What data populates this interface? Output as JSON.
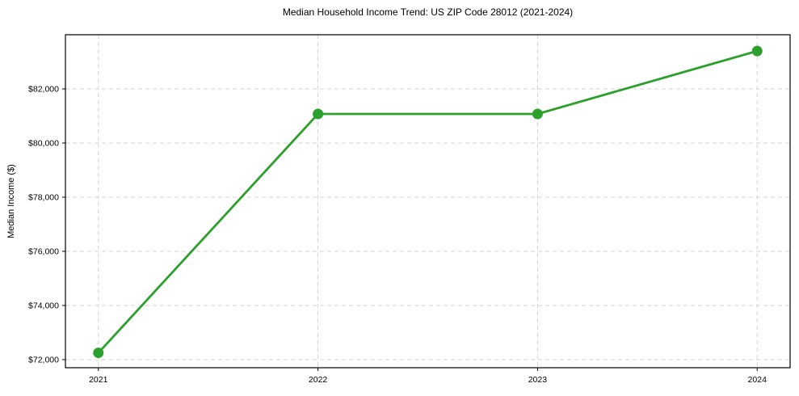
{
  "page": {
    "background": "#ffffff"
  },
  "chart_data": {
    "type": "line",
    "title": "Median Household Income Trend: US ZIP Code 28012 (2021-2024)",
    "xlabel": "",
    "ylabel": "Median Income ($)",
    "categories": [
      "2021",
      "2022",
      "2023",
      "2024"
    ],
    "x": [
      0,
      1,
      2,
      3
    ],
    "series": [
      {
        "name": "Median Household Income",
        "values": [
          72250,
          81075,
          81075,
          83400
        ]
      }
    ],
    "xlim": [
      -0.15,
      3.15
    ],
    "ylim": [
      71700,
      84000
    ],
    "y_ticks": [
      {
        "value": 72000,
        "label": "$72,000"
      },
      {
        "value": 74000,
        "label": "$74,000"
      },
      {
        "value": 76000,
        "label": "$76,000"
      },
      {
        "value": 78000,
        "label": "$78,000"
      },
      {
        "value": 80000,
        "label": "$80,000"
      },
      {
        "value": 82000,
        "label": "$82,000"
      }
    ],
    "grid": {
      "visible": true,
      "style": "dashed",
      "color": "#d3d3d3"
    },
    "legend": {
      "visible": false
    },
    "style": {
      "line_color": "#2ca02c",
      "marker_color": "#2ca02c",
      "marker_shape": "circle",
      "axis_color": "#000000",
      "text_color": "#000000"
    }
  }
}
